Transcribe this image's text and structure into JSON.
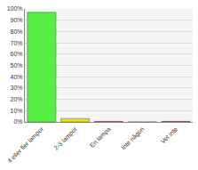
{
  "chart_data": {
    "type": "bar",
    "categories": [
      "4 eller fler lampor",
      "2-3 lampor",
      "En lampa",
      "Inte någon",
      "Vet inte"
    ],
    "values": [
      97,
      3,
      0.5,
      0,
      0.5
    ],
    "colors": [
      "#55ee44",
      "#eedd22",
      "#cc3333",
      "#cc3333",
      "#993333"
    ],
    "ylim": [
      0,
      100
    ],
    "yticks": [
      {
        "value": 0,
        "label": "0%"
      },
      {
        "value": 10,
        "label": "10%"
      },
      {
        "value": 20,
        "label": "20%"
      },
      {
        "value": 30,
        "label": "30%"
      },
      {
        "value": 40,
        "label": "40%"
      },
      {
        "value": 50,
        "label": "50%"
      },
      {
        "value": 60,
        "label": "60%"
      },
      {
        "value": 70,
        "label": "70%"
      },
      {
        "value": 80,
        "label": "80%"
      },
      {
        "value": 90,
        "label": "90%"
      },
      {
        "value": 100,
        "label": "100%"
      }
    ],
    "grid": true
  }
}
